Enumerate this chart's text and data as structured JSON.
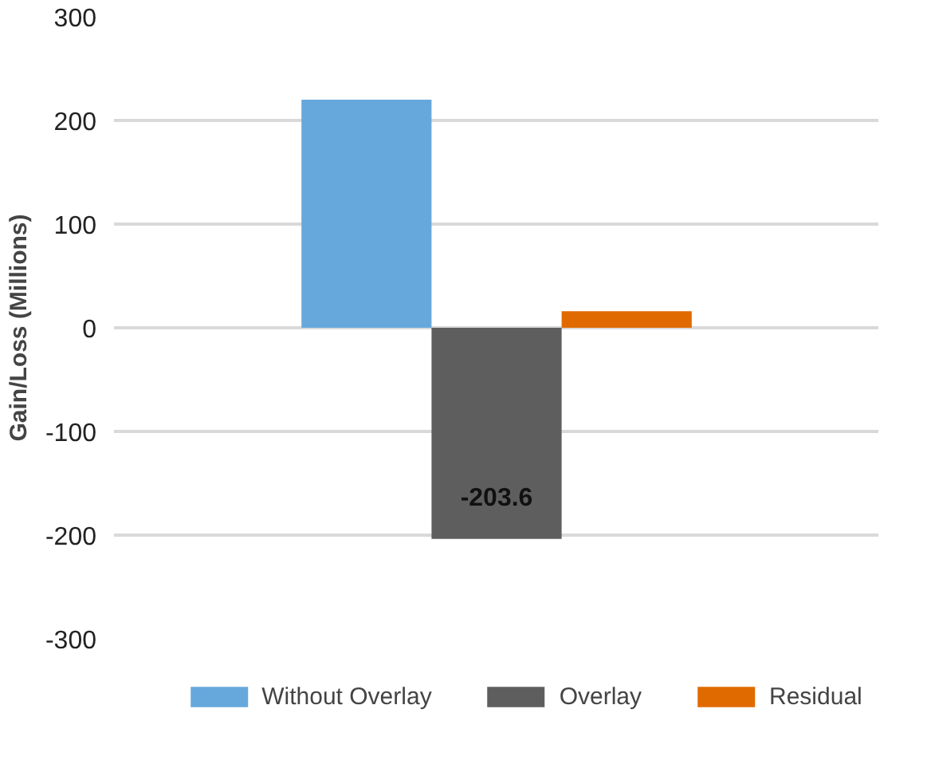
{
  "chart_data": {
    "type": "bar",
    "ylabel": "Gain/Loss (Millions)",
    "categories": [
      null
    ],
    "series": [
      {
        "name": "Without Overlay",
        "color": "#66a8dc",
        "values": [
          220
        ]
      },
      {
        "name": "Overlay",
        "color": "#5e5e5e",
        "values": [
          -203.6
        ],
        "value_labels": [
          "-203.6"
        ]
      },
      {
        "name": "Residual",
        "color": "#e06a00",
        "values": [
          16
        ]
      }
    ],
    "ylim": [
      -300,
      300
    ],
    "yticks": [
      -300,
      -200,
      -100,
      0,
      100,
      200,
      300
    ],
    "grid": "y",
    "legend": "bottom"
  }
}
